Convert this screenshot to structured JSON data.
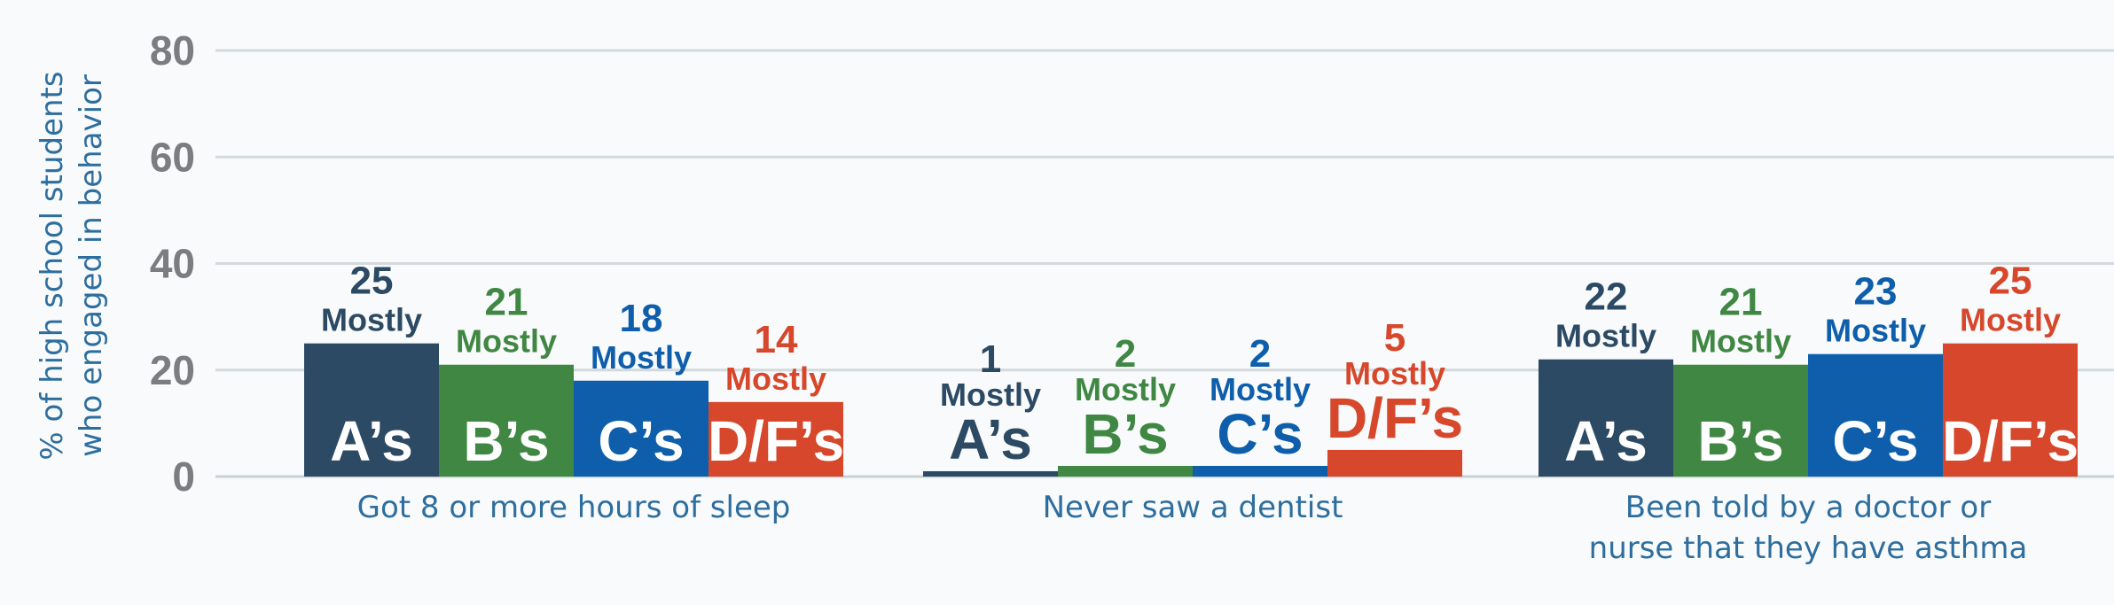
{
  "chart_data": {
    "type": "bar",
    "ylabel": [
      "% of high school students",
      "who engaged in behavior"
    ],
    "ylim": [
      0,
      80
    ],
    "yticks": [
      "0",
      "20",
      "40",
      "60",
      "80"
    ],
    "grid": true,
    "mostly_label": "Mostly",
    "categories": [
      {
        "label": [
          "Got 8 or more hours of sleep"
        ]
      },
      {
        "label": [
          "Never saw a dentist"
        ]
      },
      {
        "label": [
          "Been told by a doctor or",
          "nurse that they have asthma"
        ]
      }
    ],
    "series": [
      {
        "name": "A’s",
        "color": "#2c4a63",
        "values": [
          25,
          1,
          22
        ]
      },
      {
        "name": "B’s",
        "color": "#3f8742",
        "values": [
          21,
          2,
          21
        ]
      },
      {
        "name": "C’s",
        "color": "#0e5eab",
        "values": [
          18,
          2,
          23
        ]
      },
      {
        "name": "D/F’s",
        "color": "#d6472b",
        "values": [
          14,
          5,
          25
        ]
      }
    ],
    "bar_values_in_pixels_are_approximate": false
  }
}
